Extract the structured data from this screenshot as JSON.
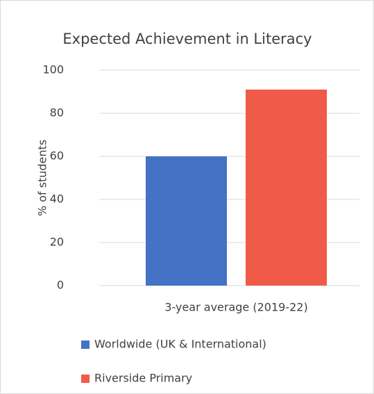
{
  "chart_data": {
    "type": "bar",
    "title": "Expected Achievement in Literacy",
    "y_label": "% of students",
    "categories": [
      "3-year average (2019-22)"
    ],
    "series": [
      {
        "name": "Worldwide (UK & International)",
        "color": "#4472c4",
        "values": [
          60
        ]
      },
      {
        "name": "Riverside Primary",
        "color": "#f05a48",
        "values": [
          91
        ]
      }
    ],
    "ylim": [
      0,
      100
    ],
    "yticks": [
      0,
      20,
      40,
      60,
      80,
      100
    ],
    "grid": true,
    "legend": "bottom"
  }
}
